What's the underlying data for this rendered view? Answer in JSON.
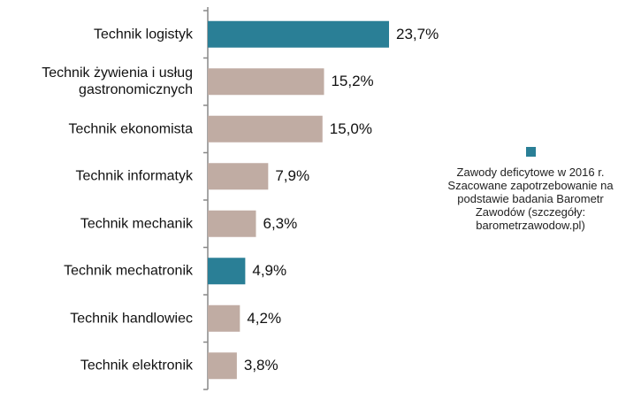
{
  "chart_data": {
    "type": "barh",
    "categories": [
      "Technik logistyk",
      "Technik żywienia i usług gastronomicznych",
      "Technik ekonomista",
      "Technik informatyk",
      "Technik mechanik",
      "Technik mechatronik",
      "Technik handlowiec",
      "Technik elektronik"
    ],
    "values": [
      23.7,
      15.2,
      15.0,
      7.9,
      6.3,
      4.9,
      4.2,
      3.8
    ],
    "value_labels": [
      "23,7%",
      "15,2%",
      "15,0%",
      "7,9%",
      "6,3%",
      "4,9%",
      "4,2%",
      "3,8%"
    ],
    "colors": [
      "#2a7f96",
      "#c0aca3",
      "#c0aca3",
      "#c0aca3",
      "#c0aca3",
      "#2a7f96",
      "#c0aca3",
      "#c0aca3"
    ],
    "legend": {
      "label": "Zawody deficytowe w 2016 r.",
      "color": "#2a7f96"
    },
    "annotation": "Szacowane zapotrzebowanie na podstawie  badania Barometr Zawodów (szczegóły: barometrzawodow.pl)"
  }
}
